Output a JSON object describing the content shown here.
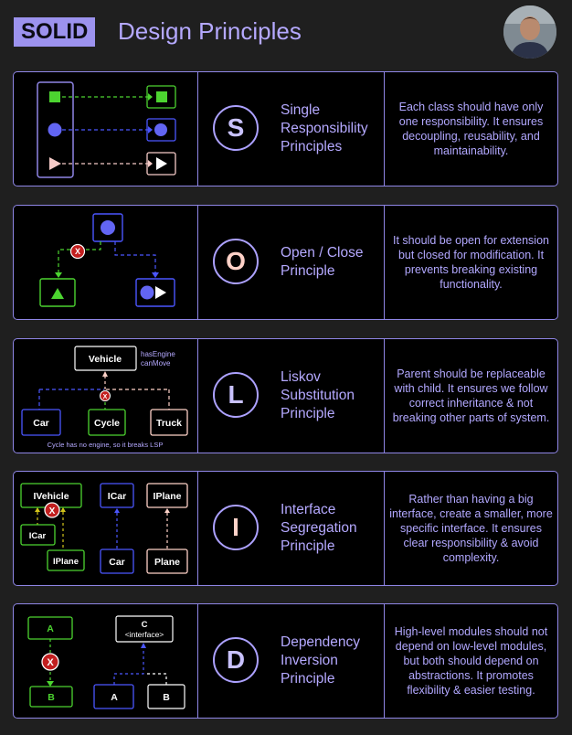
{
  "header": {
    "badge": "SOLID",
    "title": "Design Principles"
  },
  "colors": {
    "accent": "#b5a9ff",
    "border": "#8f86e6",
    "green": "#5fd33a",
    "blue": "#3c4bff",
    "pink": "#ffd2c8",
    "red": "#c21f1f"
  },
  "principles": [
    {
      "letter": "S",
      "name": "Single\nResponsibility\nPrinciples",
      "desc": "Each class should have only one responsibility.  It ensures decoupling, reusability, and maintainability.",
      "letter_color": "#c9c2ff"
    },
    {
      "letter": "O",
      "name": "Open / Close\nPrinciple",
      "desc": "It should be open for extension but closed for modification. It prevents breaking existing functionality.",
      "letter_color": "#ffd2c8"
    },
    {
      "letter": "L",
      "name": "Liskov\nSubstitution\nPrinciple",
      "desc": "Parent should be replaceable with child. It ensures we follow correct inheritance & not breaking other parts of system.",
      "letter_color": "#c9c2ff"
    },
    {
      "letter": "I",
      "name": "Interface\nSegregation\nPrinciple",
      "desc": "Rather than having a big interface, create a smaller, more specific interface. It ensures clear responsibility & avoid complexity.",
      "letter_color": "#ffd2c8"
    },
    {
      "letter": "D",
      "name": "Dependency\nInversion\nPrinciple",
      "desc": "High-level modules should not depend on low-level modules, but both should depend on abstractions. It promotes flexibility & easier testing.",
      "letter_color": "#c9c2ff"
    }
  ],
  "diagrams": {
    "l": {
      "vehicle": "Vehicle",
      "props": "hasEngine\ncanMove",
      "car": "Car",
      "cycle": "Cycle",
      "truck": "Truck",
      "note": "Cycle has no engine, so it breaks LSP"
    },
    "i": {
      "ivehicle": "IVehicle",
      "icar_small": "ICar",
      "iplane_small": "IPlane",
      "icar": "ICar",
      "iplane": "IPlane",
      "car": "Car",
      "plane": "Plane"
    },
    "d": {
      "a_top": "A",
      "b_left": "B",
      "c_iface": "C\n<interface>",
      "a_low": "A",
      "b_low": "B"
    },
    "x_mark": "X"
  }
}
